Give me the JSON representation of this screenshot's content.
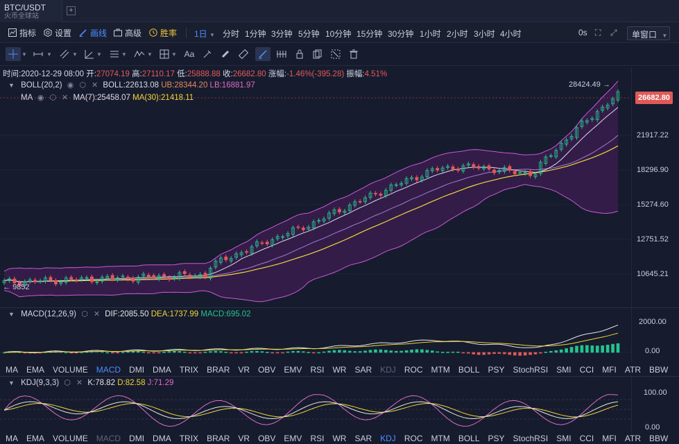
{
  "tab": {
    "title": "BTC/USDT",
    "subtitle": "火币全球站",
    "add": "+"
  },
  "toolbar": {
    "indicator": "指标",
    "settings": "设置",
    "draw": "画线",
    "advanced": "高级",
    "win_rate": "胜率",
    "intervals": [
      "1日",
      "分时",
      "1分钟",
      "3分钟",
      "5分钟",
      "10分钟",
      "15分钟",
      "30分钟",
      "1小时",
      "2小时",
      "3小时",
      "4小时"
    ],
    "active_interval": "1日",
    "countdown": "0s",
    "window_mode": "单窗口"
  },
  "ohlc": {
    "time_label": "时间:",
    "time": "2020-12-29 08:00",
    "open_label": "开:",
    "open": "27074.19",
    "high_label": "高:",
    "high": "27110.17",
    "low_label": "低:",
    "low": "25888.88",
    "close_label": "收:",
    "close": "26682.80",
    "change_label": "涨幅:",
    "change": "-1.46%(-395.28)",
    "amplitude_label": "振幅:",
    "amplitude": "4.51%"
  },
  "boll": {
    "name": "BOLL(20,2)",
    "mid": "BOLL:22613.08",
    "ub": "UB:28344.20",
    "lb": "LB:16881.97"
  },
  "ma": {
    "name": "MA",
    "ma7": "MA(7):25458.07",
    "ma30": "MA(30):21418.11"
  },
  "macd": {
    "name": "MACD(12,26,9)",
    "dif": "DIF:2085.50",
    "dea": "DEA:1737.99",
    "macd": "MACD:695.02"
  },
  "kdj": {
    "name": "KDJ(9,3,3)",
    "k": "K:78.82",
    "d": "D:82.58",
    "j": "J:71.29"
  },
  "price_axis": [
    "21917.22",
    "18296.90",
    "15274.60",
    "12751.52",
    "10645.21"
  ],
  "last_price": "26682.80",
  "high_marker": "28424.49",
  "low_marker": "9852",
  "macd_axis": [
    "2000.00",
    "0.00"
  ],
  "kdj_axis": [
    "100.00",
    "0.00"
  ],
  "indicators": [
    "MA",
    "EMA",
    "VOLUME",
    "MACD",
    "DMI",
    "DMA",
    "TRIX",
    "BRAR",
    "VR",
    "OBV",
    "EMV",
    "RSI",
    "WR",
    "SAR",
    "KDJ",
    "ROC",
    "MTM",
    "BOLL",
    "PSY",
    "StochRSI",
    "SMI",
    "CCI",
    "MFI",
    "ATR",
    "BBW"
  ],
  "colors": {
    "up": "#25c48f",
    "down": "#e05a5a",
    "accent": "#4c8dff",
    "boll_fill": "#3a1c4e",
    "boll_band": "#c95ad8",
    "ma30": "#f0d73b"
  }
}
